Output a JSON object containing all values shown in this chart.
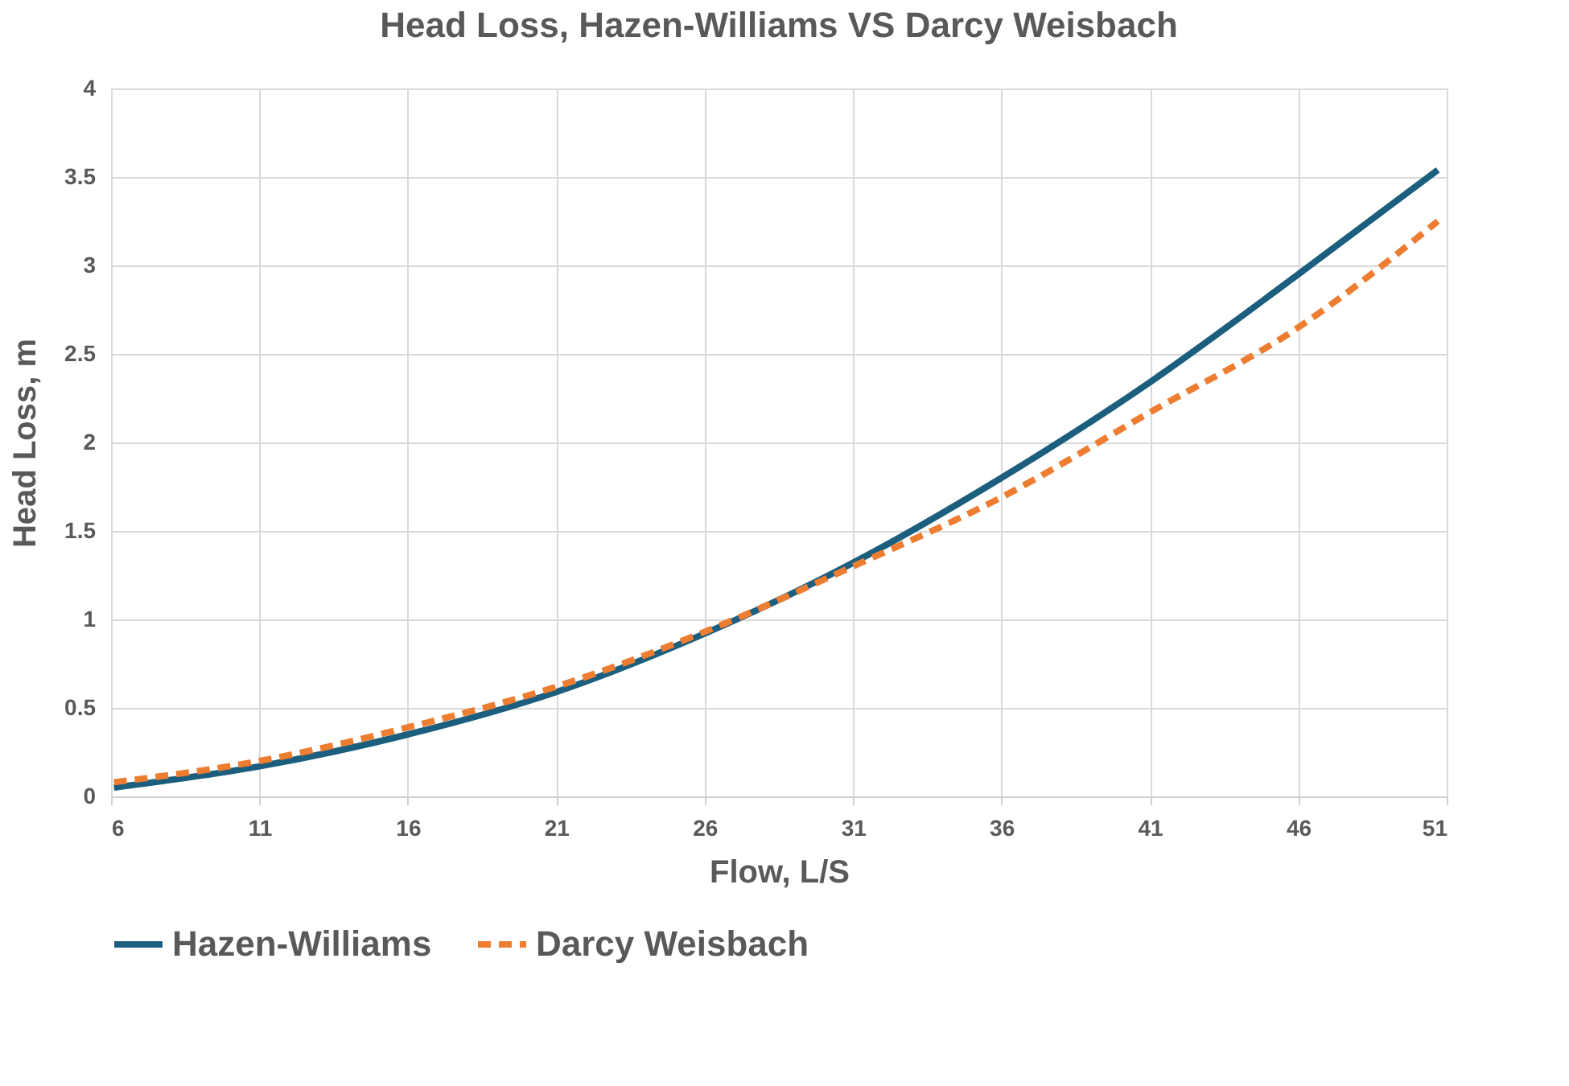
{
  "chart_data": {
    "type": "line",
    "title": "Head Loss, Hazen-Williams VS Darcy Weisbach",
    "xlabel": "Flow, L/S",
    "ylabel": "Head Loss, m",
    "x": [
      6.1,
      11,
      16,
      21,
      26,
      31,
      36,
      41,
      46,
      50.7
    ],
    "series": [
      {
        "name": "Hazen-Williams",
        "color": "#1b5e7e",
        "line_style": "solid",
        "values": [
          0.05,
          0.17,
          0.35,
          0.59,
          0.92,
          1.32,
          1.8,
          2.34,
          2.95,
          3.54
        ]
      },
      {
        "name": "Darcy Weisbach",
        "color": "#ed7d31",
        "line_style": "dashed",
        "values": [
          0.08,
          0.2,
          0.39,
          0.62,
          0.93,
          1.3,
          1.69,
          2.17,
          2.65,
          3.25
        ]
      }
    ],
    "xlim": [
      6,
      51
    ],
    "xticks": [
      6,
      11,
      16,
      21,
      26,
      31,
      36,
      41,
      46,
      51
    ],
    "ylim": [
      0,
      4
    ],
    "yticks": [
      0,
      0.5,
      1,
      1.5,
      2,
      2.5,
      3,
      3.5,
      4
    ],
    "grid": true,
    "legend": "bottom",
    "marker": "none"
  }
}
